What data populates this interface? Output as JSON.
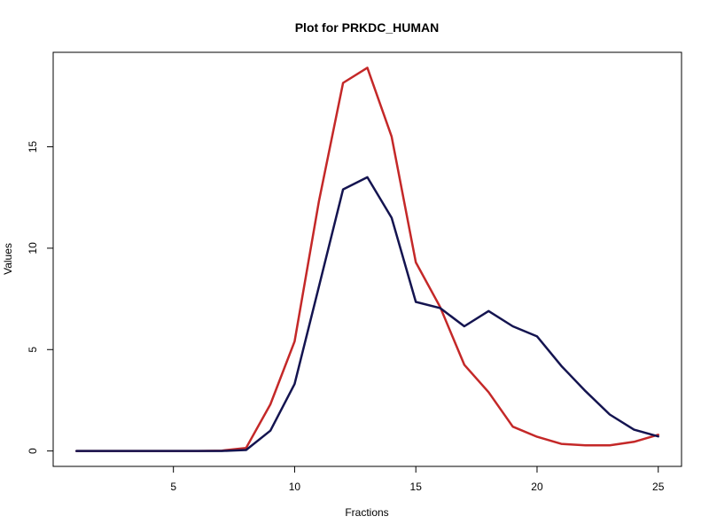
{
  "chart_data": {
    "type": "line",
    "title": "Plot for PRKDC_HUMAN",
    "xlabel": "Fractions",
    "ylabel": "Values",
    "xlim": [
      0.04,
      25.96
    ],
    "ylim": [
      -0.76,
      19.66
    ],
    "xticks": [
      5,
      10,
      15,
      20,
      25
    ],
    "yticks": [
      0,
      5,
      10,
      15
    ],
    "grid": false,
    "legend": "none",
    "x": [
      1,
      2,
      3,
      4,
      5,
      6,
      7,
      8,
      9,
      10,
      11,
      12,
      13,
      14,
      15,
      16,
      17,
      18,
      19,
      20,
      21,
      22,
      23,
      24,
      25
    ],
    "series": [
      {
        "color": "#C42828",
        "values": [
          0,
          0,
          0,
          0,
          0,
          0,
          0.02,
          0.15,
          2.3,
          5.4,
          12.3,
          18.15,
          18.9,
          15.5,
          9.3,
          7.1,
          4.25,
          2.9,
          1.2,
          0.7,
          0.35,
          0.28,
          0.28,
          0.45,
          0.8
        ]
      },
      {
        "color": "#141450",
        "values": [
          0,
          0,
          0,
          0,
          0,
          0,
          0,
          0.05,
          1.0,
          3.3,
          8.1,
          12.9,
          13.5,
          11.5,
          7.35,
          7.05,
          6.15,
          6.9,
          6.15,
          5.65,
          4.2,
          2.95,
          1.8,
          1.05,
          0.72
        ]
      }
    ]
  }
}
